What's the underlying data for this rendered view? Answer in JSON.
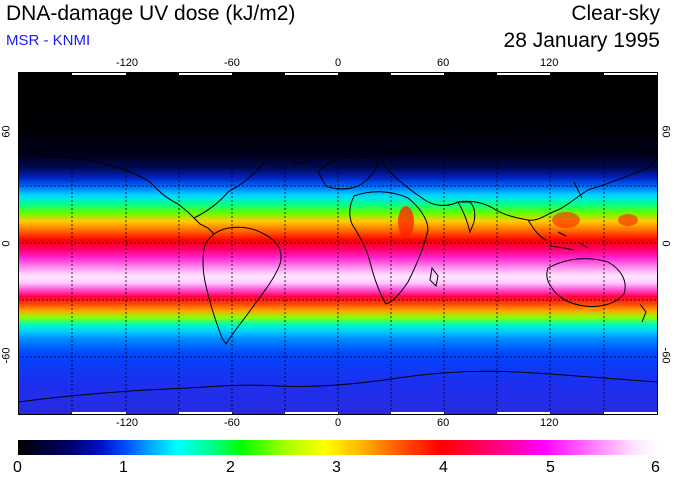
{
  "header": {
    "title": "DNA-damage UV dose (kJ/m2)",
    "subtitle": "MSR - KNMI",
    "mode": "Clear-sky",
    "date": "28 January 1995"
  },
  "map": {
    "lon_ticks": [
      "-120",
      "-60",
      "0",
      "60",
      "120"
    ],
    "lat_ticks": [
      "60",
      "0",
      "-60"
    ]
  },
  "colorbar": {
    "labels": [
      "0",
      "1",
      "2",
      "3",
      "4",
      "5",
      "6"
    ]
  },
  "colors": {
    "subtitle": "#1a1aff",
    "background": "#ffffff"
  }
}
